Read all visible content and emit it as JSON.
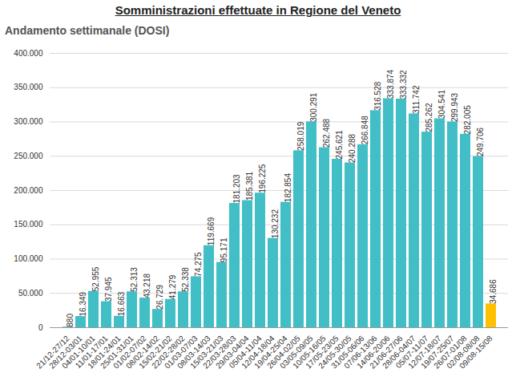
{
  "chart_data": {
    "type": "bar",
    "title": "Somministrazioni effettuate in  Regione del Veneto",
    "subtitle": "Andamento settimanale (DOSI)",
    "categories": [
      "21/12-27/12",
      "28/12-03/01",
      "04/01-10/01",
      "11/01-17/01",
      "18/01-24/01",
      "25/01-31/01",
      "01/02-07/02",
      "08/02-14/02",
      "15/02-21/02",
      "22/02-28/02",
      "01/03-07/03",
      "08/03-14/03",
      "15/03-21/03",
      "22/03-28/03",
      "29/03-04/04",
      "05/04-11/04",
      "12/04-18/04",
      "19/04-25/04",
      "26/04-02/05",
      "03/05-09/05",
      "10/05-16/05",
      "17/05-23/05",
      "24/05-30/05",
      "31/05-06/06",
      "07/06-13/06",
      "14/06-20/06",
      "21/06-27/06",
      "28/06-04/07",
      "05/07-11/07",
      "12/07-18/07",
      "19/07-25/07",
      "26/07-01/08",
      "02/08-08/08",
      "09/08-15/08"
    ],
    "values": [
      880,
      16349,
      52955,
      37945,
      16663,
      52313,
      43218,
      26729,
      41279,
      52338,
      74275,
      119669,
      95171,
      181203,
      185381,
      196225,
      130232,
      182854,
      258019,
      300291,
      262488,
      245621,
      240288,
      266848,
      316528,
      333874,
      333332,
      311742,
      285262,
      304541,
      299943,
      282005,
      249706,
      34686
    ],
    "value_labels": [
      "880",
      "16.349",
      "52.955",
      "37.945",
      "16.663",
      "52.313",
      "43.218",
      "26.729",
      "41.279",
      "52.338",
      "74.275",
      "119.669",
      "95.171",
      "181.203",
      "185.381",
      "196.225",
      "130.232",
      "182.854",
      "258.019",
      "300.291",
      "262.488",
      "245.621",
      "240.288",
      "266.848",
      "316.528",
      "333.874",
      "333.332",
      "311.742",
      "285.262",
      "304.541",
      "299.943",
      "282.005",
      "249.706",
      "34.686"
    ],
    "colors": [
      "#41bec6",
      "#41bec6",
      "#41bec6",
      "#41bec6",
      "#41bec6",
      "#41bec6",
      "#41bec6",
      "#41bec6",
      "#41bec6",
      "#41bec6",
      "#41bec6",
      "#41bec6",
      "#41bec6",
      "#41bec6",
      "#41bec6",
      "#41bec6",
      "#41bec6",
      "#41bec6",
      "#41bec6",
      "#41bec6",
      "#41bec6",
      "#41bec6",
      "#41bec6",
      "#41bec6",
      "#41bec6",
      "#41bec6",
      "#41bec6",
      "#41bec6",
      "#41bec6",
      "#41bec6",
      "#41bec6",
      "#41bec6",
      "#41bec6",
      "#ffc000"
    ],
    "ylim": [
      0,
      400000
    ],
    "yticks": [
      {
        "value": 0,
        "label": "0"
      },
      {
        "value": 50000,
        "label": "50.000"
      },
      {
        "value": 100000,
        "label": "100.000"
      },
      {
        "value": 150000,
        "label": "150.000"
      },
      {
        "value": 200000,
        "label": "200.000"
      },
      {
        "value": 250000,
        "label": "250.000"
      },
      {
        "value": 300000,
        "label": "300.000"
      },
      {
        "value": 350000,
        "label": "350.000"
      },
      {
        "value": 400000,
        "label": "400.000"
      }
    ],
    "grid": true,
    "data_labels": true
  }
}
